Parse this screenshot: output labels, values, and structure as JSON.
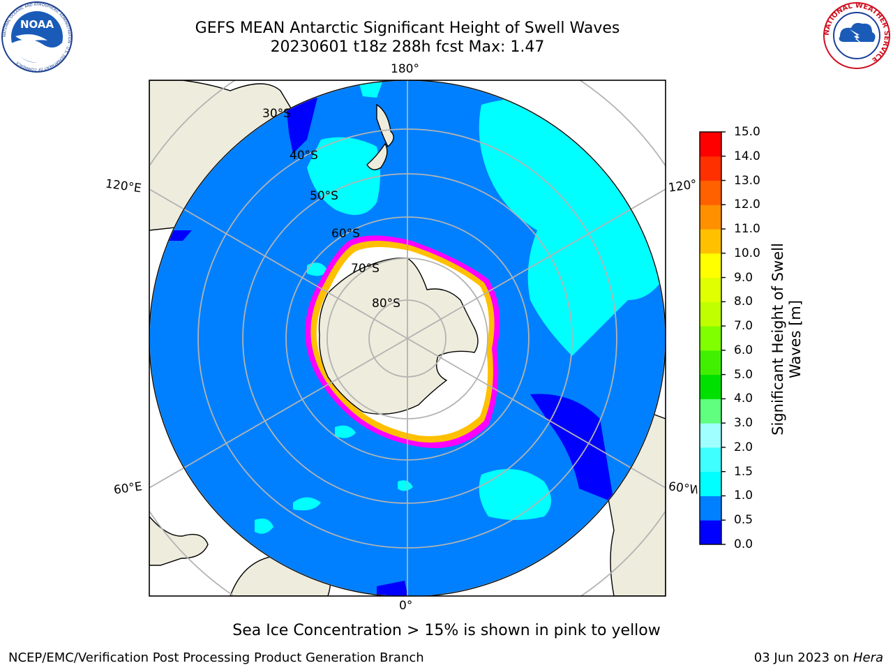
{
  "title": {
    "line1": "GEFS MEAN Antarctic Significant Height of Swell Waves",
    "line2": "20230601 t18z 288h fcst   Max: 1.47"
  },
  "logos": {
    "left": "noaa-logo",
    "left_text": "NOAA",
    "left_ring_text": "NATIONAL OCEANIC AND ATMOSPHERIC ADMINISTRATION · U.S. DEPARTMENT OF COMMERCE",
    "right": "nws-logo",
    "right_ring_text": "NATIONAL WEATHER SERVICE"
  },
  "map": {
    "projection": "south polar stereographic",
    "longitude_labels": {
      "top": "180°",
      "bottom": "0°",
      "left_upper": "120°E",
      "left_lower": "60°E",
      "right_upper": "120°",
      "right_lower": "60°W"
    },
    "latitude_labels": [
      "30°S",
      "40°S",
      "50°S",
      "60°S",
      "70°S",
      "80°S"
    ],
    "colors": {
      "ocean_low": "#0000ff",
      "ocean_main": "#0080ff",
      "swell_cyan": "#00ffff",
      "land": "#eeecdc",
      "ice_edge": "#ff00ff",
      "ice_core": "#ffffff",
      "grid": "#b3b3b3"
    }
  },
  "colorbar": {
    "label": "Significant Height of Swell Waves [m]",
    "ticks": [
      "0.0",
      "0.5",
      "1.0",
      "1.5",
      "2.0",
      "3.0",
      "4.0",
      "5.0",
      "6.0",
      "7.0",
      "8.0",
      "9.0",
      "10.0",
      "11.0",
      "12.0",
      "13.0",
      "14.0",
      "15.0"
    ],
    "colors": [
      "#0000ff",
      "#0080ff",
      "#00ffff",
      "#40ffff",
      "#a0ffff",
      "#60ff80",
      "#00e000",
      "#40f000",
      "#80ff00",
      "#c0ff00",
      "#e0ff00",
      "#ffff00",
      "#ffc000",
      "#ff9000",
      "#ff6000",
      "#ff3000",
      "#ff0000"
    ]
  },
  "footnote": "Sea Ice Concentration > 15% is shown in pink to yellow",
  "credit_left": "NCEP/EMC/Verification Post Processing Product Generation Branch",
  "credit_date": "03 Jun 2023 on ",
  "credit_machine": "Hera"
}
